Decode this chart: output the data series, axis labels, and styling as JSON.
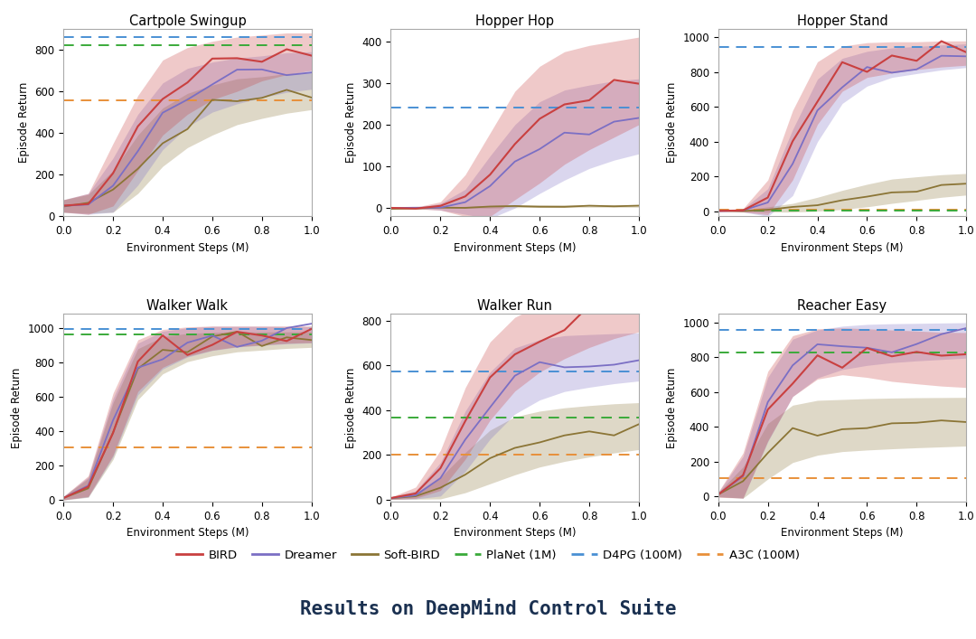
{
  "subplots": [
    {
      "title": "Cartpole Swingup",
      "ylim": [
        0,
        900
      ],
      "yticks": [
        0,
        200,
        400,
        600,
        800
      ],
      "bird_mean": [
        50,
        60,
        200,
        400,
        570,
        650,
        700,
        730,
        760,
        780,
        790
      ],
      "bird_std": [
        30,
        50,
        150,
        180,
        180,
        160,
        140,
        130,
        110,
        100,
        90
      ],
      "dreamer_mean": [
        50,
        60,
        150,
        320,
        480,
        570,
        620,
        650,
        670,
        690,
        700
      ],
      "dreamer_std": [
        30,
        50,
        130,
        170,
        160,
        140,
        120,
        110,
        100,
        95,
        90
      ],
      "softbird_mean": [
        50,
        60,
        120,
        250,
        380,
        460,
        510,
        550,
        570,
        590,
        600
      ],
      "softbird_std": [
        30,
        45,
        100,
        140,
        140,
        130,
        120,
        110,
        100,
        95,
        88
      ],
      "planet_val": 820,
      "d4pg_val": 860,
      "a3c_val": 555
    },
    {
      "title": "Hopper Hop",
      "ylim": [
        -20,
        430
      ],
      "yticks": [
        0,
        100,
        200,
        300,
        400
      ],
      "bird_mean": [
        0,
        0,
        5,
        30,
        80,
        150,
        200,
        240,
        265,
        285,
        305
      ],
      "bird_std": [
        0,
        2,
        10,
        50,
        100,
        130,
        140,
        135,
        125,
        115,
        105
      ],
      "dreamer_mean": [
        0,
        0,
        3,
        15,
        50,
        100,
        145,
        175,
        195,
        210,
        220
      ],
      "dreamer_std": [
        0,
        1,
        8,
        30,
        75,
        100,
        110,
        108,
        100,
        95,
        90
      ],
      "softbird_mean": [
        0,
        0,
        1,
        2,
        3,
        4,
        5,
        5,
        5,
        5,
        5
      ],
      "softbird_std": [
        0,
        0,
        1,
        2,
        3,
        3,
        3,
        3,
        3,
        3,
        3
      ],
      "planet_val": null,
      "d4pg_val": 242,
      "a3c_val": null
    },
    {
      "title": "Hopper Stand",
      "ylim": [
        -30,
        1050
      ],
      "yticks": [
        0,
        200,
        400,
        600,
        800,
        1000
      ],
      "bird_mean": [
        2,
        5,
        80,
        380,
        680,
        820,
        870,
        885,
        895,
        905,
        910
      ],
      "bird_std": [
        2,
        10,
        100,
        200,
        180,
        130,
        100,
        90,
        80,
        75,
        70
      ],
      "dreamer_mean": [
        2,
        4,
        50,
        280,
        580,
        750,
        820,
        855,
        870,
        885,
        895
      ],
      "dreamer_std": [
        2,
        8,
        80,
        190,
        180,
        130,
        100,
        85,
        78,
        72,
        68
      ],
      "softbird_mean": [
        2,
        3,
        10,
        20,
        40,
        65,
        90,
        115,
        130,
        145,
        155
      ],
      "softbird_std": [
        2,
        5,
        15,
        25,
        40,
        55,
        65,
        70,
        68,
        65,
        62
      ],
      "planet_val": 3,
      "d4pg_val": 945,
      "a3c_val": 10
    },
    {
      "title": "Walker Walk",
      "ylim": [
        -10,
        1080
      ],
      "yticks": [
        0,
        200,
        400,
        600,
        800,
        1000
      ],
      "bird_mean": [
        10,
        80,
        440,
        780,
        880,
        920,
        940,
        950,
        955,
        960,
        962
      ],
      "bird_std": [
        10,
        60,
        180,
        150,
        110,
        85,
        70,
        60,
        55,
        50,
        48
      ],
      "dreamer_mean": [
        10,
        75,
        420,
        760,
        870,
        915,
        938,
        948,
        953,
        957,
        960
      ],
      "dreamer_std": [
        10,
        58,
        170,
        150,
        110,
        85,
        70,
        60,
        55,
        50,
        48
      ],
      "softbird_mean": [
        10,
        70,
        400,
        730,
        840,
        885,
        905,
        918,
        923,
        928,
        932
      ],
      "softbird_std": [
        10,
        55,
        165,
        148,
        108,
        82,
        68,
        58,
        53,
        48,
        46
      ],
      "planet_val": 962,
      "d4pg_val": 992,
      "a3c_val": 305
    },
    {
      "title": "Walker Run",
      "ylim": [
        -10,
        830
      ],
      "yticks": [
        0,
        200,
        400,
        600,
        800
      ],
      "bird_mean": [
        5,
        30,
        130,
        340,
        530,
        650,
        720,
        770,
        810,
        840,
        860
      ],
      "bird_std": [
        5,
        25,
        90,
        160,
        175,
        165,
        150,
        140,
        130,
        120,
        110
      ],
      "dreamer_mean": [
        5,
        20,
        90,
        260,
        420,
        530,
        580,
        608,
        620,
        630,
        638
      ],
      "dreamer_std": [
        5,
        18,
        75,
        135,
        150,
        148,
        135,
        125,
        118,
        112,
        108
      ],
      "softbird_mean": [
        5,
        15,
        50,
        120,
        190,
        240,
        270,
        290,
        305,
        318,
        328
      ],
      "softbird_std": [
        5,
        14,
        48,
        90,
        120,
        130,
        125,
        120,
        115,
        110,
        105
      ],
      "planet_val": 367,
      "d4pg_val": 574,
      "a3c_val": 200
    },
    {
      "title": "Reacher Easy",
      "ylim": [
        -30,
        1050
      ],
      "yticks": [
        0,
        200,
        400,
        600,
        800,
        1000
      ],
      "bird_mean": [
        10,
        120,
        520,
        750,
        820,
        835,
        825,
        810,
        800,
        790,
        785
      ],
      "bird_std": [
        15,
        130,
        200,
        175,
        145,
        135,
        140,
        148,
        152,
        155,
        158
      ],
      "dreamer_mean": [
        10,
        110,
        500,
        740,
        820,
        855,
        872,
        882,
        888,
        893,
        898
      ],
      "dreamer_std": [
        12,
        120,
        185,
        165,
        138,
        125,
        118,
        112,
        108,
        105,
        102
      ],
      "softbird_mean": [
        10,
        80,
        260,
        360,
        395,
        408,
        415,
        420,
        424,
        427,
        430
      ],
      "softbird_std": [
        12,
        90,
        160,
        165,
        158,
        150,
        148,
        146,
        144,
        142,
        140
      ],
      "planet_val": 828,
      "d4pg_val": 958,
      "a3c_val": 105
    }
  ],
  "colors": {
    "bird": "#c94040",
    "dreamer": "#7b6fc4",
    "softbird": "#8B7536",
    "planet": "#3aaa3a",
    "d4pg": "#4a90d4",
    "a3c": "#e8903a"
  },
  "legend_labels": [
    "BIRD",
    "Dreamer",
    "Soft-BIRD",
    "PlaNet (1M)",
    "D4PG (100M)",
    "A3C (100M)"
  ],
  "xlabel": "Environment Steps (M)",
  "ylabel": "Episode Return",
  "title_text": "Results on DeepMind Control Suite",
  "title_bg_color": "#4a7a68",
  "title_text_color": "#1a3050",
  "bg_color": "#ffffff",
  "x_values": [
    0.0,
    0.1,
    0.2,
    0.3,
    0.4,
    0.5,
    0.6,
    0.7,
    0.8,
    0.9,
    1.0
  ],
  "noise_seed": 42
}
